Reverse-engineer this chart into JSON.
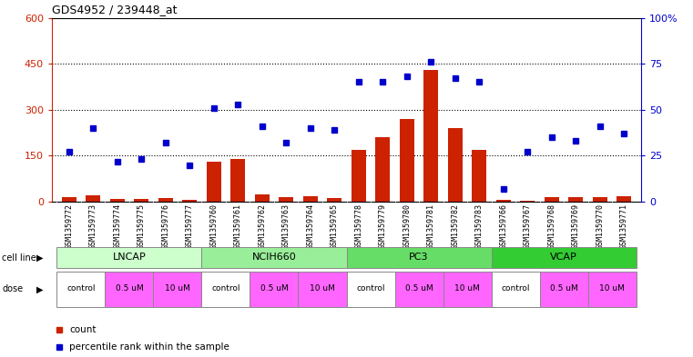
{
  "title": "GDS4952 / 239448_at",
  "samples": [
    "GSM1359772",
    "GSM1359773",
    "GSM1359774",
    "GSM1359775",
    "GSM1359776",
    "GSM1359777",
    "GSM1359760",
    "GSM1359761",
    "GSM1359762",
    "GSM1359763",
    "GSM1359764",
    "GSM1359765",
    "GSM1359778",
    "GSM1359779",
    "GSM1359780",
    "GSM1359781",
    "GSM1359782",
    "GSM1359783",
    "GSM1359766",
    "GSM1359767",
    "GSM1359768",
    "GSM1359769",
    "GSM1359770",
    "GSM1359771"
  ],
  "counts": [
    15,
    20,
    8,
    10,
    12,
    5,
    130,
    140,
    25,
    15,
    18,
    12,
    170,
    210,
    270,
    430,
    240,
    170,
    5,
    3,
    15,
    15,
    15,
    18
  ],
  "percentiles_pct": [
    27,
    40,
    22,
    23,
    32,
    20,
    51,
    53,
    41,
    32,
    40,
    39,
    65,
    65,
    68,
    76,
    67,
    65,
    7,
    27,
    35,
    33,
    41,
    37
  ],
  "cell_lines": [
    {
      "label": "LNCAP",
      "start": 0,
      "end": 6
    },
    {
      "label": "NCIH660",
      "start": 6,
      "end": 12
    },
    {
      "label": "PC3",
      "start": 12,
      "end": 18
    },
    {
      "label": "VCAP",
      "start": 18,
      "end": 24
    }
  ],
  "cell_line_colors": [
    "#ccffcc",
    "#99ee99",
    "#66dd66",
    "#33cc33"
  ],
  "dose_labels_per_cl": [
    "control",
    "0.5 uM",
    "10 uM"
  ],
  "dose_sizes": [
    2,
    2,
    2
  ],
  "dose_colors": [
    "#ffffff",
    "#ff66ff",
    "#ff66ff"
  ],
  "cl_starts": [
    0,
    6,
    12,
    18
  ],
  "ylim_left": [
    0,
    600
  ],
  "ylim_right": [
    0,
    100
  ],
  "yticks_left": [
    0,
    150,
    300,
    450,
    600
  ],
  "yticks_right": [
    0,
    25,
    50,
    75,
    100
  ],
  "hlines": [
    150,
    300,
    450
  ],
  "bar_color": "#cc2200",
  "dot_color": "#0000cc",
  "bg_color": "#ffffff",
  "title_fontsize": 9,
  "tick_label_fontsize": 6,
  "axis_fontsize": 8
}
